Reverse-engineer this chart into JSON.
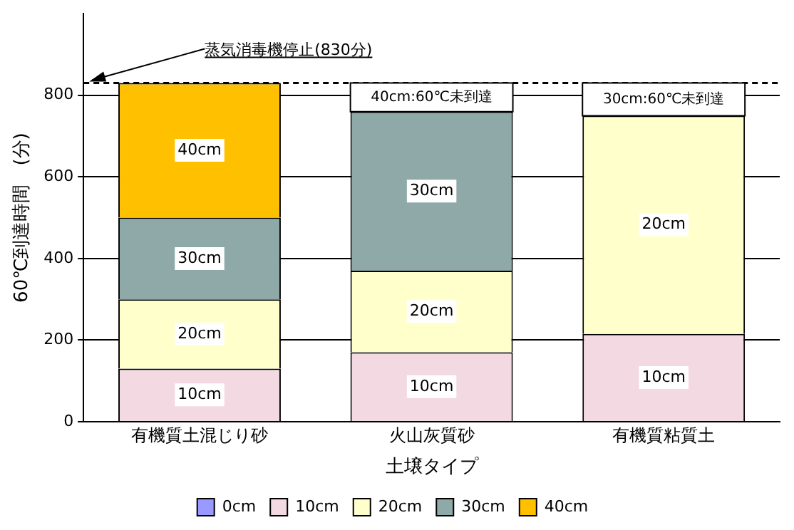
{
  "chart_data": {
    "type": "bar",
    "stacked": true,
    "xlabel": "土壌タイプ",
    "ylabel": "60℃到達時間　(分)",
    "categories": [
      "有機質土混じり砂",
      "火山灰質砂",
      "有機質粘質土"
    ],
    "series": [
      {
        "name": "0cm",
        "color": "#9999ff",
        "values": [
          null,
          null,
          null
        ]
      },
      {
        "name": "10cm",
        "color": "#f2d9e2",
        "values": [
          130,
          170,
          215
        ]
      },
      {
        "name": "20cm",
        "color": "#ffffcc",
        "values": [
          170,
          200,
          535
        ]
      },
      {
        "name": "30cm",
        "color": "#8fa8a8",
        "values": [
          200,
          390,
          null
        ]
      },
      {
        "name": "40cm",
        "color": "#ffc000",
        "values": [
          330,
          null,
          null
        ]
      }
    ],
    "ylim": [
      0,
      1000
    ],
    "yticks": [
      0,
      200,
      400,
      600,
      800
    ],
    "grid": "y",
    "legend": "bottom",
    "ref_lines": [
      {
        "axis": "y",
        "value": 830,
        "label": "蒸気消毒機停止(830分)",
        "line_style": "dashed"
      }
    ],
    "annotations": [
      "40cm:60℃未到達",
      "30cm:60℃未到達"
    ]
  }
}
